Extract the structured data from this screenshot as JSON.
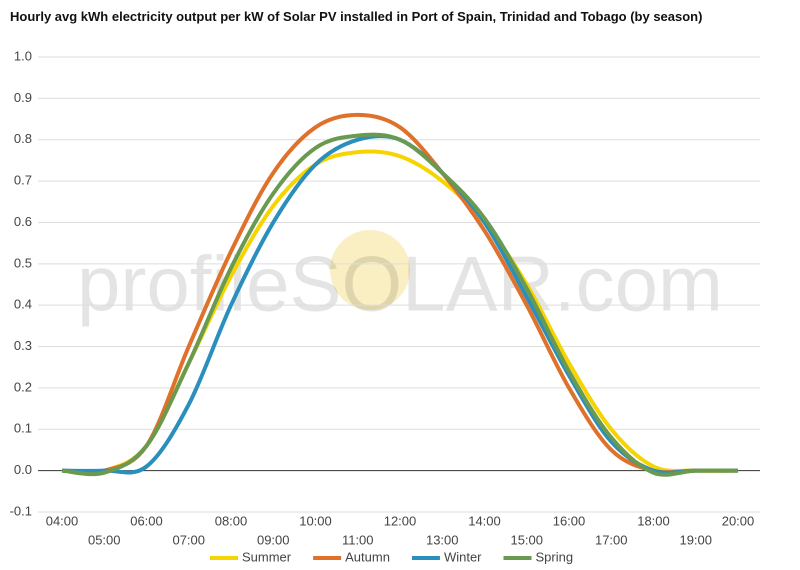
{
  "chart_data": {
    "type": "line",
    "title": "Hourly avg kWh electricity output per kW of Solar PV installed in Port of Spain, Trinidad and Tobago (by season)",
    "watermark": "profileSOLAR.com",
    "categories": [
      "04:00",
      "05:00",
      "06:00",
      "07:00",
      "08:00",
      "09:00",
      "10:00",
      "11:00",
      "12:00",
      "13:00",
      "14:00",
      "15:00",
      "16:00",
      "17:00",
      "18:00",
      "19:00",
      "20:00"
    ],
    "series": [
      {
        "name": "Summer",
        "color": "#f5d400",
        "values": [
          0,
          0,
          0.06,
          0.26,
          0.47,
          0.64,
          0.74,
          0.77,
          0.76,
          0.7,
          0.6,
          0.45,
          0.26,
          0.1,
          0.01,
          0,
          0
        ]
      },
      {
        "name": "Autumn",
        "color": "#e0712a",
        "values": [
          0,
          0,
          0.06,
          0.3,
          0.53,
          0.72,
          0.83,
          0.86,
          0.83,
          0.72,
          0.58,
          0.4,
          0.2,
          0.05,
          0,
          0,
          0
        ]
      },
      {
        "name": "Winter",
        "color": "#2a8fbd",
        "values": [
          0,
          0,
          0.01,
          0.16,
          0.4,
          0.6,
          0.74,
          0.8,
          0.8,
          0.72,
          0.6,
          0.42,
          0.23,
          0.07,
          0,
          0,
          0
        ]
      },
      {
        "name": "Spring",
        "color": "#6a9a50",
        "values": [
          0,
          -0.005,
          0.06,
          0.26,
          0.49,
          0.67,
          0.78,
          0.81,
          0.8,
          0.72,
          0.61,
          0.44,
          0.24,
          0.08,
          -0.005,
          0,
          0
        ]
      }
    ],
    "ylim": [
      -0.1,
      1
    ],
    "yticks": [
      -0.1,
      {
        "value": 0,
        "label": "0.0"
      },
      0.1,
      0.2,
      0.3,
      0.4,
      0.5,
      0.6,
      0.7,
      0.8,
      0.9,
      {
        "value": 1,
        "label": "1.0"
      }
    ],
    "grid": true,
    "legend": "bottom"
  }
}
